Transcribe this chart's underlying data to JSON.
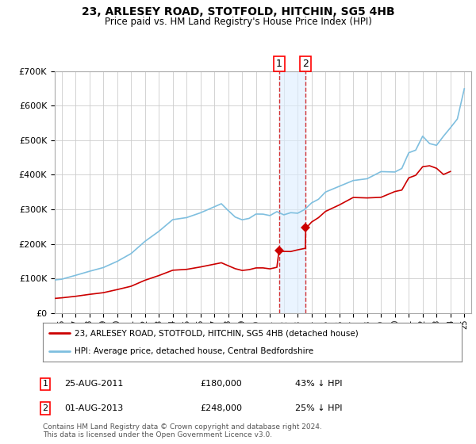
{
  "title": "23, ARLESEY ROAD, STOTFOLD, HITCHIN, SG5 4HB",
  "subtitle": "Price paid vs. HM Land Registry's House Price Index (HPI)",
  "ylim": [
    0,
    700000
  ],
  "xlim_start": 1995.5,
  "xlim_end": 2025.5,
  "yticks": [
    0,
    100000,
    200000,
    300000,
    400000,
    500000,
    600000,
    700000
  ],
  "ytick_labels": [
    "£0",
    "£100K",
    "£200K",
    "£300K",
    "£400K",
    "£500K",
    "£600K",
    "£700K"
  ],
  "hpi_color": "#7fbfdf",
  "price_color": "#cc0000",
  "transaction1_date": 2011.65,
  "transaction1_price": 180000,
  "transaction2_date": 2013.58,
  "transaction2_price": 248000,
  "legend_property": "23, ARLESEY ROAD, STOTFOLD, HITCHIN, SG5 4HB (detached house)",
  "legend_hpi": "HPI: Average price, detached house, Central Bedfordshire",
  "table_row1": [
    "1",
    "25-AUG-2011",
    "£180,000",
    "43% ↓ HPI"
  ],
  "table_row2": [
    "2",
    "01-AUG-2013",
    "£248,000",
    "25% ↓ HPI"
  ],
  "footer": "Contains HM Land Registry data © Crown copyright and database right 2024.\nThis data is licensed under the Open Government Licence v3.0.",
  "grid_color": "#cccccc",
  "shade_color": "#ddeeff"
}
